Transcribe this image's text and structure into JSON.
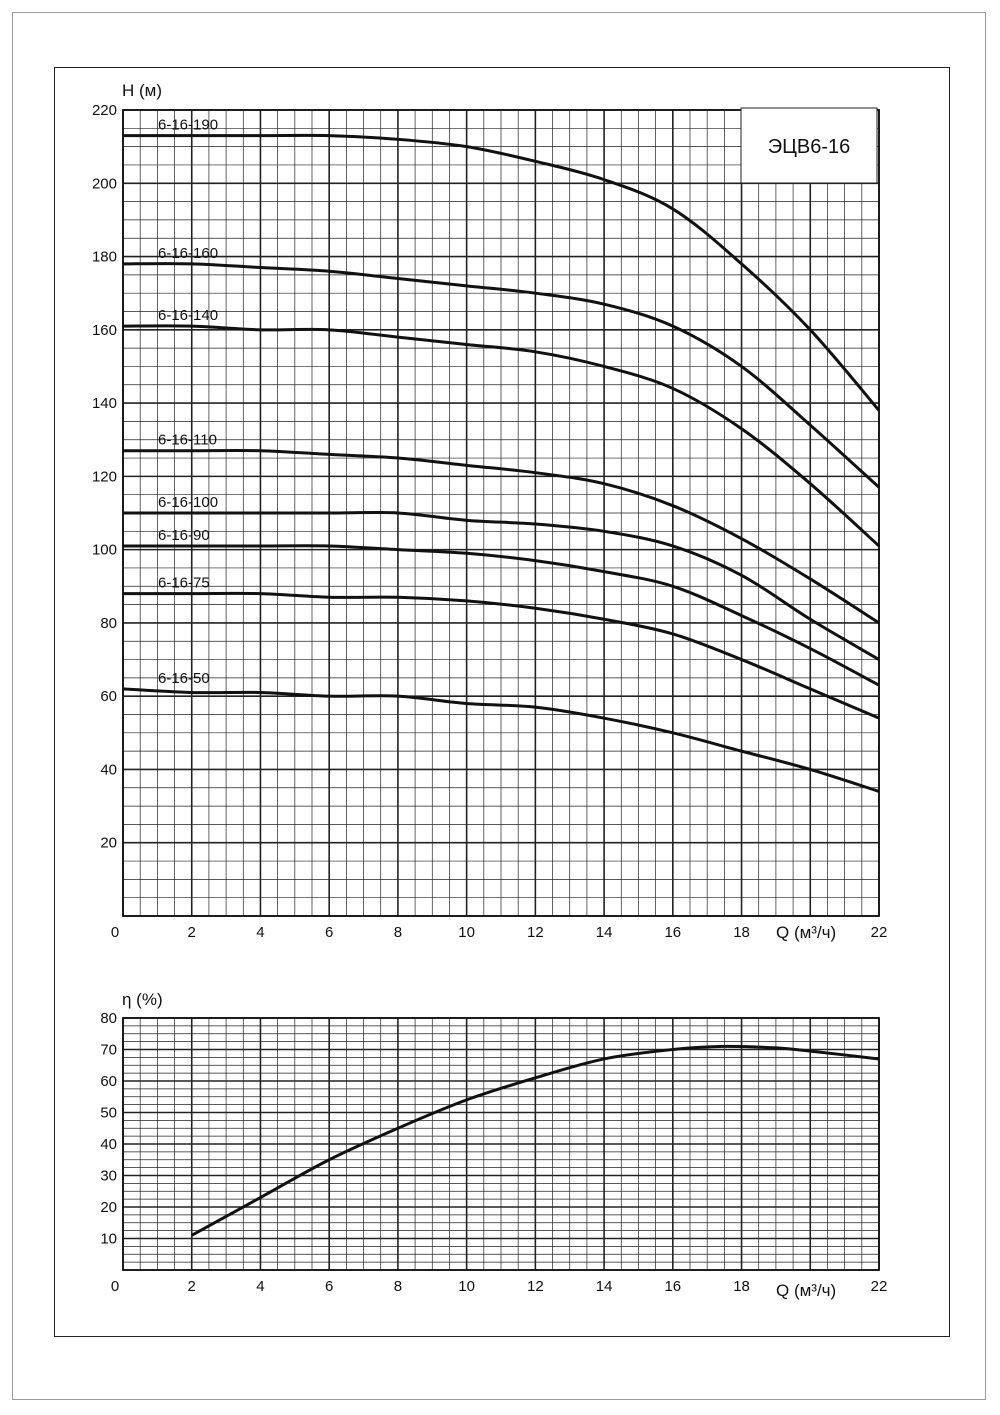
{
  "chart_data": [
    {
      "type": "line",
      "title": "ЭЦВ6-16",
      "ylabel": "H (м)",
      "xlabel": "Q (м³/ч)",
      "xlim": [
        0,
        22
      ],
      "ylim": [
        0,
        220
      ],
      "xticks": [
        "0",
        "2",
        "4",
        "6",
        "8",
        "10",
        "12",
        "14",
        "16",
        "18",
        "22"
      ],
      "yticks": [
        "20",
        "40",
        "60",
        "80",
        "100",
        "120",
        "140",
        "160",
        "180",
        "200",
        "220"
      ],
      "grid": true,
      "series": [
        {
          "name": "6-16-190",
          "x": [
            0,
            2,
            4,
            6,
            8,
            10,
            12,
            14,
            16,
            18,
            20,
            22
          ],
          "values": [
            213,
            213,
            213,
            213,
            212,
            210,
            206,
            201,
            193,
            178,
            160,
            138
          ]
        },
        {
          "name": "6-16-160",
          "x": [
            0,
            2,
            4,
            6,
            8,
            10,
            12,
            14,
            16,
            18,
            20,
            22
          ],
          "values": [
            178,
            178,
            177,
            176,
            174,
            172,
            170,
            167,
            161,
            150,
            134,
            117
          ]
        },
        {
          "name": "6-16-140",
          "x": [
            0,
            2,
            4,
            6,
            8,
            10,
            12,
            14,
            16,
            18,
            20,
            22
          ],
          "values": [
            161,
            161,
            160,
            160,
            158,
            156,
            154,
            150,
            144,
            133,
            118,
            101
          ]
        },
        {
          "name": "6-16-110",
          "x": [
            0,
            2,
            4,
            6,
            8,
            10,
            12,
            14,
            16,
            18,
            20,
            22
          ],
          "values": [
            127,
            127,
            127,
            126,
            125,
            123,
            121,
            118,
            112,
            103,
            92,
            80
          ]
        },
        {
          "name": "6-16-100",
          "x": [
            0,
            2,
            4,
            6,
            8,
            10,
            12,
            14,
            16,
            18,
            20,
            22
          ],
          "values": [
            110,
            110,
            110,
            110,
            110,
            108,
            107,
            105,
            101,
            93,
            81,
            70
          ]
        },
        {
          "name": "6-16-90",
          "x": [
            0,
            2,
            4,
            6,
            8,
            10,
            12,
            14,
            16,
            18,
            20,
            22
          ],
          "values": [
            101,
            101,
            101,
            101,
            100,
            99,
            97,
            94,
            90,
            82,
            73,
            63
          ]
        },
        {
          "name": "6-16-75",
          "x": [
            0,
            2,
            4,
            6,
            8,
            10,
            12,
            14,
            16,
            18,
            20,
            22
          ],
          "values": [
            88,
            88,
            88,
            87,
            87,
            86,
            84,
            81,
            77,
            70,
            62,
            54
          ]
        },
        {
          "name": "6-16-50",
          "x": [
            0,
            2,
            4,
            6,
            8,
            10,
            12,
            14,
            16,
            18,
            20,
            22
          ],
          "values": [
            62,
            61,
            61,
            60,
            60,
            58,
            57,
            54,
            50,
            45,
            40,
            34
          ]
        }
      ]
    },
    {
      "type": "line",
      "title": "",
      "ylabel": "η (%)",
      "xlabel": "Q (м³/ч)",
      "xlim": [
        0,
        22
      ],
      "ylim": [
        0,
        80
      ],
      "xticks": [
        "0",
        "2",
        "4",
        "6",
        "8",
        "10",
        "12",
        "14",
        "16",
        "18",
        "22"
      ],
      "yticks": [
        "10",
        "20",
        "30",
        "40",
        "50",
        "60",
        "70",
        "80"
      ],
      "grid": true,
      "series": [
        {
          "name": "efficiency",
          "x": [
            2,
            4,
            6,
            8,
            10,
            12,
            14,
            16,
            17.5,
            19,
            20,
            22
          ],
          "values": [
            11,
            23,
            35,
            45,
            54,
            61,
            67,
            70,
            71,
            70.5,
            69.5,
            67
          ]
        }
      ]
    }
  ]
}
